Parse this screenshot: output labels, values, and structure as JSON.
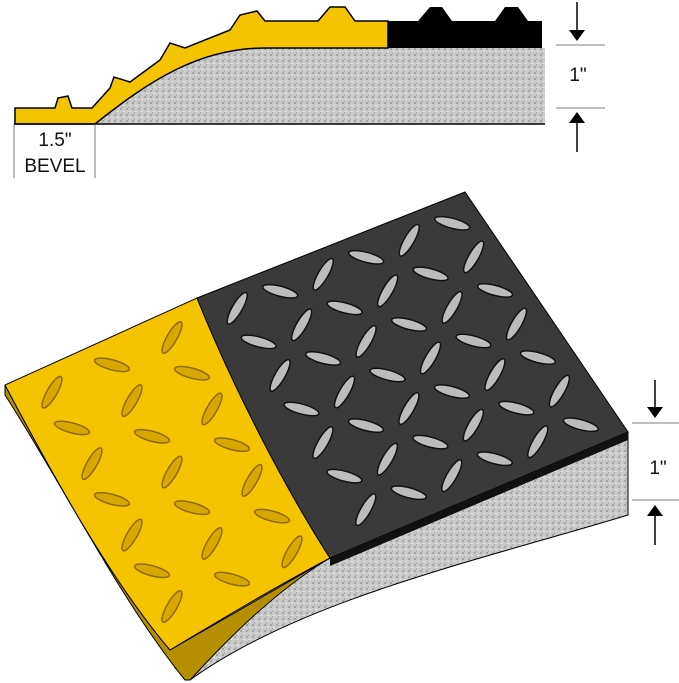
{
  "cross_section": {
    "bevel_width_label": "1.5\"",
    "bevel_label": "BEVEL",
    "thickness_label": "1\""
  },
  "mat_3d": {
    "thickness_label": "1\""
  },
  "colors": {
    "yellow_surface": "#f5c400",
    "black_surface": "#3a3a3a",
    "foam": "#c8c8c8",
    "outline": "#000000"
  }
}
